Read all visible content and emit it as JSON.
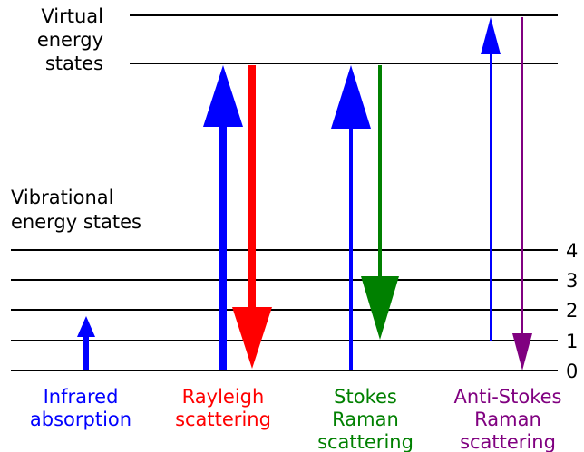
{
  "labels": {
    "virtual": [
      "Virtual",
      "energy",
      "states"
    ],
    "vibrational": [
      "Vibrational",
      "energy states"
    ],
    "levels": [
      "4",
      "3",
      "2",
      "1",
      "0"
    ]
  },
  "processes": [
    {
      "key": "infrared",
      "lines": [
        "Infrared",
        "absorption"
      ],
      "color": "#0000ff"
    },
    {
      "key": "rayleigh",
      "lines": [
        "Rayleigh",
        "scattering"
      ],
      "color": "#ff0000"
    },
    {
      "key": "stokes",
      "lines": [
        "Stokes",
        "Raman",
        "scattering"
      ],
      "color": "#008000"
    },
    {
      "key": "antistokes",
      "lines": [
        "Anti-Stokes",
        "Raman",
        "scattering"
      ],
      "color": "#800080"
    }
  ],
  "colors": {
    "level_line": "#000000",
    "absorption": "#0000ff"
  }
}
